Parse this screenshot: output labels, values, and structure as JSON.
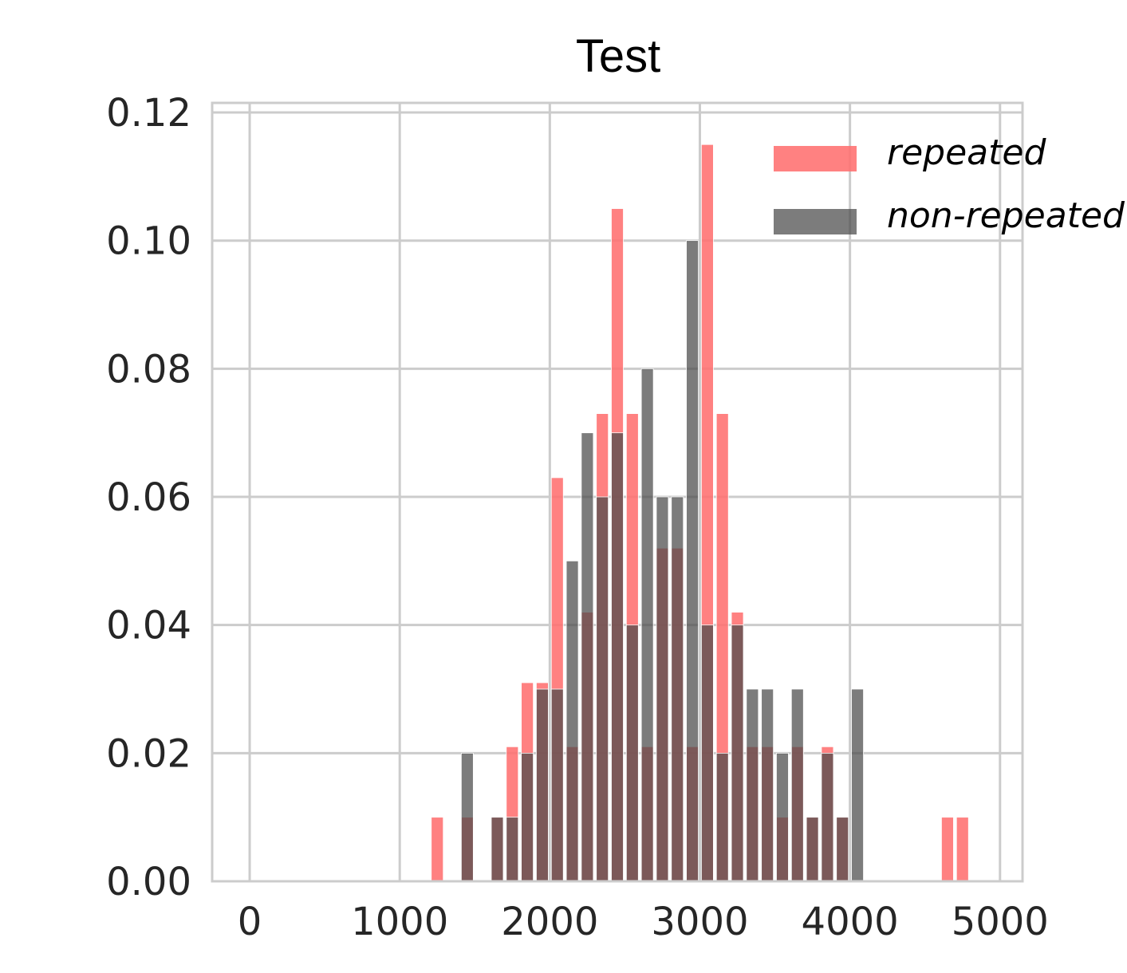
{
  "chart_data": {
    "type": "bar",
    "title": "Test",
    "xlabel": "",
    "ylabel": "",
    "xlim": [
      -250,
      5150
    ],
    "ylim": [
      0,
      0.1215
    ],
    "xticks": [
      0,
      1000,
      2000,
      3000,
      4000,
      5000
    ],
    "yticks": [
      0.0,
      0.02,
      0.04,
      0.06,
      0.08,
      0.1,
      0.12
    ],
    "xtick_labels": [
      "0",
      "1000",
      "2000",
      "3000",
      "4000",
      "5000"
    ],
    "ytick_labels": [
      "0.00",
      "0.02",
      "0.04",
      "0.06",
      "0.08",
      "0.10",
      "0.12"
    ],
    "grid": true,
    "legend_position": "top-right",
    "bin_width": 100,
    "x": [
      1250,
      1450,
      1650,
      1750,
      1850,
      1950,
      2050,
      2150,
      2250,
      2350,
      2450,
      2550,
      2650,
      2750,
      2850,
      2950,
      3050,
      3150,
      3250,
      3350,
      3450,
      3550,
      3650,
      3750,
      3850,
      3950,
      4050,
      4650,
      4750
    ],
    "series": [
      {
        "name": "repeated",
        "color": "#ff6f6f",
        "values": [
          0.01,
          0.01,
          0.01,
          0.021,
          0.031,
          0.031,
          0.063,
          0.021,
          0.042,
          0.073,
          0.105,
          0.073,
          0.021,
          0.052,
          0.052,
          0.021,
          0.115,
          0.073,
          0.042,
          0.021,
          0.021,
          0.01,
          0.021,
          0.01,
          0.021,
          0.01,
          0,
          0.01,
          0.01
        ]
      },
      {
        "name": "non-repeated",
        "color": "#4a4a4a",
        "values": [
          0,
          0.02,
          0.01,
          0.01,
          0.02,
          0.03,
          0.03,
          0.05,
          0.07,
          0.06,
          0.07,
          0.04,
          0.08,
          0.06,
          0.06,
          0.1,
          0.04,
          0.02,
          0.04,
          0.03,
          0.03,
          0.02,
          0.03,
          0.01,
          0.02,
          0.01,
          0.03,
          0,
          0
        ]
      }
    ]
  }
}
